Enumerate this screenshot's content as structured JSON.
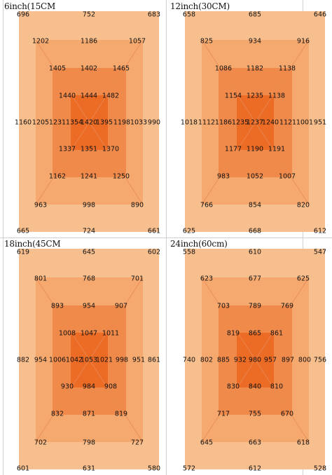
{
  "colors": {
    "ring1": "#f8bf8e",
    "ring2": "#f5a96f",
    "ring3": "#f08a4b",
    "ring4": "#ec6c25",
    "diag": "#e98a55"
  },
  "panels": [
    {
      "title": "6inch(15CM",
      "values": {
        "r0c0": "696",
        "r0c2": "752",
        "r0c4": "683",
        "r1c0": "1202",
        "r1c2": "1186",
        "r1c4": "1057",
        "r2c0": "1405",
        "r2c2": "1402",
        "r2c4": "1465",
        "r3c0": "1440",
        "r3c2": "1444",
        "r3c4": "1482",
        "m0": "1160",
        "m1": "1205",
        "m2": "1231",
        "m3": "1354",
        "m4": "1420",
        "m5": "1395",
        "m6": "1198",
        "m7": "1033",
        "m8": "990",
        "r5c0": "1337",
        "r5c2": "1351",
        "r5c4": "1370",
        "r6c0": "1162",
        "r6c2": "1241",
        "r6c4": "1250",
        "r7c0": "963",
        "r7c2": "998",
        "r7c4": "890",
        "r8c0": "665",
        "r8c2": "724",
        "r8c4": "661"
      }
    },
    {
      "title": "12inch(30CM)",
      "values": {
        "r0c0": "658",
        "r0c2": "685",
        "r0c4": "646",
        "r1c0": "825",
        "r1c2": "934",
        "r1c4": "916",
        "r2c0": "1086",
        "r2c2": "1182",
        "r2c4": "1138",
        "r3c0": "1154",
        "r3c2": "1235",
        "r3c4": "1138",
        "m0": "1018",
        "m1": "1112",
        "m2": "1186",
        "m3": "1235",
        "m4": "1237",
        "m5": "1240",
        "m6": "1121",
        "m7": "1001",
        "m8": "951",
        "r5c0": "1177",
        "r5c2": "1190",
        "r5c4": "1191",
        "r6c0": "983",
        "r6c2": "1052",
        "r6c4": "1007",
        "r7c0": "766",
        "r7c2": "854",
        "r7c4": "820",
        "r8c0": "625",
        "r8c2": "668",
        "r8c4": "612"
      }
    },
    {
      "title": "18inch(45CM",
      "values": {
        "r0c0": "619",
        "r0c2": "645",
        "r0c4": "602",
        "r1c0": "801",
        "r1c2": "768",
        "r1c4": "701",
        "r2c0": "893",
        "r2c2": "954",
        "r2c4": "907",
        "r3c0": "1008",
        "r3c2": "1047",
        "r3c4": "1011",
        "m0": "882",
        "m1": "954",
        "m2": "1006",
        "m3": "1042",
        "m4": "1053",
        "m5": "1021",
        "m6": "998",
        "m7": "951",
        "m8": "861",
        "r5c0": "930",
        "r5c2": "984",
        "r5c4": "908",
        "r6c0": "832",
        "r6c2": "871",
        "r6c4": "819",
        "r7c0": "702",
        "r7c2": "798",
        "r7c4": "727",
        "r8c0": "601",
        "r8c2": "631",
        "r8c4": "580"
      }
    },
    {
      "title": "24inch(60cm)",
      "values": {
        "r0c0": "558",
        "r0c2": "610",
        "r0c4": "547",
        "r1c0": "623",
        "r1c2": "677",
        "r1c4": "625",
        "r2c0": "703",
        "r2c2": "789",
        "r2c4": "769",
        "r3c0": "819",
        "r3c2": "865",
        "r3c4": "861",
        "m0": "740",
        "m1": "802",
        "m2": "885",
        "m3": "932",
        "m4": "980",
        "m5": "957",
        "m6": "897",
        "m7": "800",
        "m8": "756",
        "r5c0": "830",
        "r5c2": "840",
        "r5c4": "810",
        "r6c0": "717",
        "r6c2": "755",
        "r6c4": "670",
        "r7c0": "645",
        "r7c2": "663",
        "r7c4": "618",
        "r8c0": "572",
        "r8c2": "612",
        "r8c4": "528"
      }
    }
  ]
}
